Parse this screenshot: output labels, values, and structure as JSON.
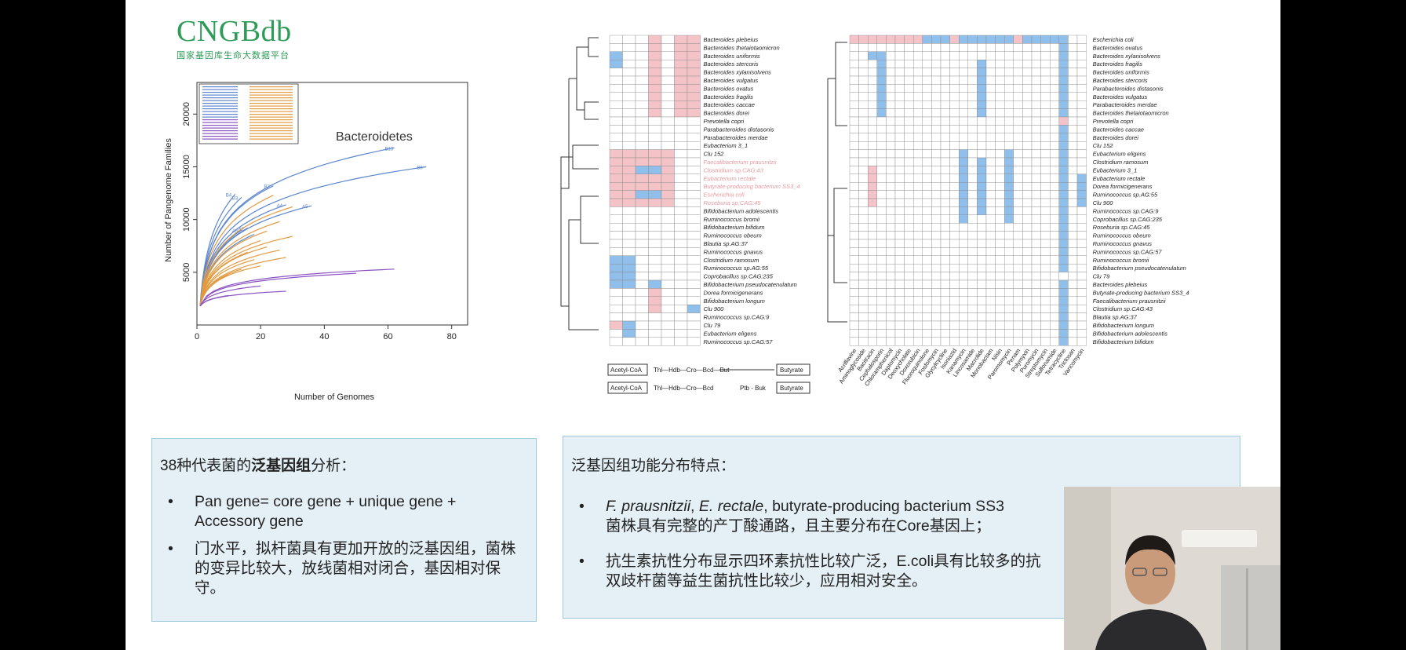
{
  "logo": {
    "title": "CNGBdb",
    "subtitle": "国家基因库生命大数据平台"
  },
  "chart_data": {
    "type": "line",
    "annotation": "Bacteroidetes",
    "xlabel": "Number of Genomes",
    "ylabel": "Number of Pangenome Families",
    "xlim": [
      0,
      85
    ],
    "ylim": [
      0,
      23000
    ],
    "x_ticks": [
      0,
      20,
      40,
      60,
      80
    ],
    "y_ticks": [
      5000,
      10000,
      15000,
      20000
    ],
    "grid": false,
    "legend": "top-left",
    "series_groups": [
      {
        "group": "blue",
        "color": "#5b86cf",
        "curves": [
          [
            62,
            16800
          ],
          [
            72,
            15000
          ],
          [
            24,
            13200
          ],
          [
            12,
            12400
          ],
          [
            14,
            12100
          ],
          [
            28,
            11400
          ],
          [
            36,
            11300
          ],
          [
            16,
            9200
          ],
          [
            14,
            9000
          ],
          [
            18,
            8600
          ]
        ]
      },
      {
        "group": "orange",
        "color": "#e39a3f",
        "curves": [
          [
            24,
            12300
          ],
          [
            30,
            11200
          ],
          [
            26,
            9800
          ],
          [
            22,
            8900
          ],
          [
            30,
            8400
          ],
          [
            20,
            8000
          ],
          [
            22,
            7400
          ],
          [
            26,
            7100
          ],
          [
            16,
            6900
          ],
          [
            28,
            6400
          ],
          [
            18,
            6200
          ],
          [
            20,
            5600
          ],
          [
            14,
            5300
          ],
          [
            10,
            4800
          ]
        ]
      },
      {
        "group": "purple",
        "color": "#8a52c2",
        "curves": [
          [
            62,
            5300
          ],
          [
            50,
            4900
          ],
          [
            20,
            3700
          ],
          [
            28,
            3200
          ],
          [
            10,
            2800
          ]
        ]
      }
    ],
    "curve_labels": [
      "B13",
      "B8",
      "B2",
      "B4",
      "B3",
      "A4",
      "A5",
      "A2",
      "A3"
    ]
  },
  "heatmap1": {
    "rows": [
      "Bacteroides plebeius",
      "Bacteroides thetaiotaomicron",
      "Bacteroides uniformis",
      "Bacteroides stercoris",
      "Bacteroides xylanisolvens",
      "Bacteroides vulgatus",
      "Bacteroides ovatus",
      "Bacteroides fragilis",
      "Bacteroides caccae",
      "Bacteroides dorei",
      "Prevotella copri",
      "Parabacteroides distasonis",
      "Parabacteroides merdae",
      "Eubacterium 3_1",
      "Clu 152",
      "Faecalibacterium prausnitzii",
      "Clostridium sp.CAG:43",
      "Eubacterium rectale",
      "Butyrate-producing bacterium SS3_4",
      "Escherichia coli",
      "Roseburia sp.CAG:45",
      "Bifidobacterium adolescentis",
      "Ruminococcus bromii",
      "Bifidobacterium bifidum",
      "Ruminococcus obeum",
      "Blautia sp.AG:37",
      "Ruminococcus gnavus",
      "Clostridium ramosum",
      "Ruminococcus sp.AG:55",
      "Coprobacillus sp.CAG:235",
      "Bifidobacterium pseudocatenulatum",
      "Dorea formicigenerans",
      "Bifidobacterium longum",
      "Clu 900",
      "Ruminococcus sp.CAG:9",
      "Clu 79",
      "Eubacterium eligens",
      "Ruminococcus sp.CAG:57"
    ],
    "pathway_1": {
      "start": "Acetyl-CoA",
      "steps": "Thl—Hdb—Cro—Bcd—But",
      "end": "Butyrate"
    },
    "pathway_2": {
      "start": "Acetyl-CoA",
      "steps": "Thl—Hdb—Cro—Bcd",
      "mid": "Ptb - Buk",
      "end": "Butyrate"
    }
  },
  "heatmap2": {
    "rows": [
      "Escherichia coli",
      "Bacteroides ovatus",
      "Bacteroides xylanisolvens",
      "Bacteroides fragilis",
      "Bacteroides uniformis",
      "Bacteroides stercoris",
      "Parabacteroides distasonis",
      "Bacteroides vulgatus",
      "Parabacteroides merdae",
      "Bacteroides thetaiotaomicron",
      "Prevotella copri",
      "Bacteroides caccae",
      "Bacteroides dorei",
      "Clu 152",
      "Eubacterium eligens",
      "Clostridium ramosum",
      "Eubacterium 3_1",
      "Eubacterium rectale",
      "Dorea formicigenerans",
      "Ruminococcus sp.AG:55",
      "Clu 900",
      "Ruminococcus sp.CAG:9",
      "Coprobacillus sp.CAG:235",
      "Roseburia sp.CAG:45",
      "Ruminococcus obeum",
      "Ruminococcus gnavus",
      "Ruminococcus sp.CAG:57",
      "Ruminococcus bromii",
      "Bifidobacterium pseudocatenulatum",
      "Clu 79",
      "Bacteroides plebeius",
      "Butyrate-producing bacterium SS3_4",
      "Faecalibacterium prausnitzii",
      "Clostridium sp.CAG:43",
      "Blautia sp.AG:37",
      "Bifidobacterium longum",
      "Bifidobacterium adolescentis",
      "Bifidobacterium bifidum"
    ],
    "cols": [
      "Acriflavine",
      "Aminoglycoside",
      "Bacitracin",
      "Cephalosporin",
      "Chloramphenicol",
      "Daptomycin",
      "Deoxycholate",
      "Doxorubicin",
      "Fluoroquinolone",
      "Fosfomycin",
      "Glycylcycline",
      "Isoniazid",
      "Kanamycin",
      "Lincosamide",
      "Macrolide",
      "Monobactam",
      "Nisin",
      "Paromomycin",
      "Penam",
      "Polymyxin",
      "Puromycin",
      "Streptomycin",
      "Sulfonamide",
      "Tetracycline",
      "Triclosan",
      "Vancomycin"
    ]
  },
  "panel_left": {
    "title_prefix": "38种代表菌的",
    "title_bold": "泛基因组",
    "title_suffix": "分析：",
    "bullets": [
      "Pan gene= core gene + unique gene + Accessory gene",
      "门水平，拟杆菌具有更加开放的泛基因组，菌株的变异比较大，放线菌相对闭合，基因相对保守。"
    ]
  },
  "panel_right": {
    "title": "泛基因组功能分布特点：",
    "b1_italic_1": "F. prausnitzii",
    "b1_sep": ", ",
    "b1_italic_2": "E. rectale",
    "b1_rest": ", butyrate-producing bacterium SS3",
    "b1_line2": "菌株具有完整的产丁酸通路，且主要分布在Core基因上；",
    "b2_line1": "抗生素抗性分布显示四环素抗性比较广泛，E.coli具有比较多的抗",
    "b2_line2": "双歧杆菌等益生菌抗性比较少，应用相对安全。",
    "bullet_symbol": "•"
  }
}
